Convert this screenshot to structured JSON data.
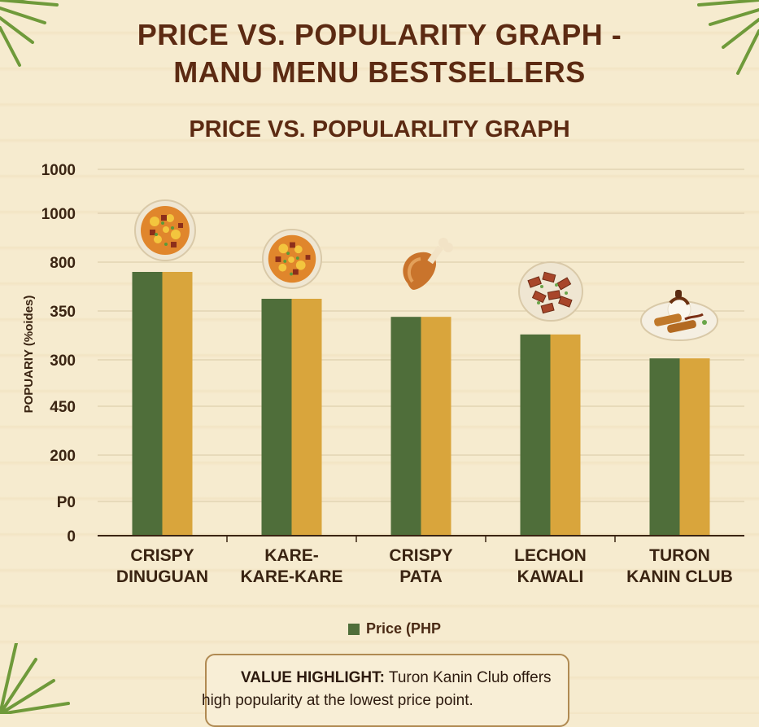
{
  "title": "PRICE VS. POPULARITY GRAPH -\nMANU MENU BESTSELLERS",
  "chart_data": {
    "type": "bar",
    "title": "PRICE VS. POPULARLITY GRAPH",
    "ylabel": "POPUARIY (%oides)",
    "xlabel": "",
    "y_tick_labels": [
      "0",
      "P0",
      "200",
      "450",
      "300",
      "350",
      "800",
      "1000",
      "1000"
    ],
    "categories": [
      {
        "line1": "CRISPY",
        "line2": "DINUGUAN"
      },
      {
        "line1": "KARE-",
        "line2": "KARE-KARE"
      },
      {
        "line1": "CRISPY",
        "line2": "PATA"
      },
      {
        "line1": "LECHON",
        "line2": "KAWALI"
      },
      {
        "line1": "TURON",
        "line2": "KANIN CLUB"
      }
    ],
    "series": [
      {
        "name": "Price (PHP",
        "color": "#4f6e3a",
        "values": [
          5.4,
          4.85,
          4.48,
          4.12,
          3.63
        ]
      },
      {
        "color": "#d9a53c",
        "values": [
          5.4,
          4.85,
          4.48,
          4.12,
          3.63
        ]
      }
    ],
    "ylim": [
      0,
      7.5
    ],
    "grid": true,
    "legend_position": "bottom"
  },
  "food_icons": [
    "stew-bowl-icon",
    "stew-bowl-icon",
    "roast-chicken-leg-icon",
    "pork-belly-plate-icon",
    "turon-dessert-plate-icon"
  ],
  "callout": {
    "label": "VALUE HIGHLIGHT:",
    "text1": " Turon Kanin Club offers",
    "text2": "high popularity at the lowest price point."
  }
}
